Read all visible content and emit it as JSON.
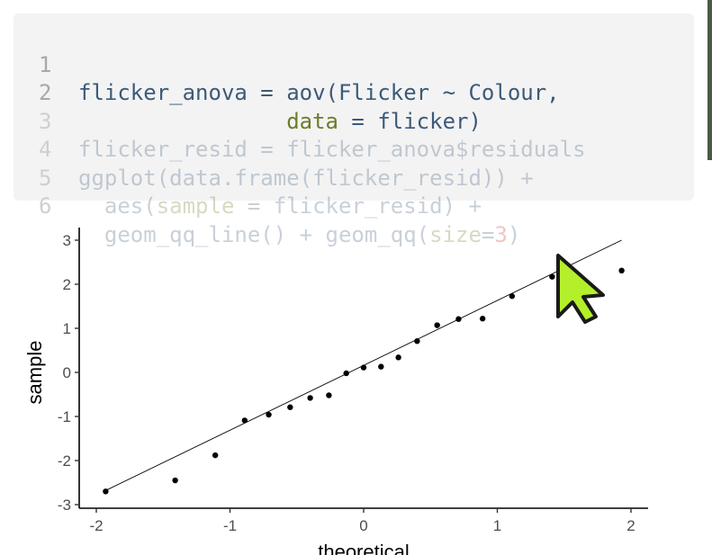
{
  "code": {
    "lines": [
      {
        "num": "1",
        "html": "<span class=\"c-fn\">flicker_anova = aov(Flicker ~ Colour,</span>"
      },
      {
        "num": "2",
        "html": "                <span class=\"c-arg\">data</span><span class=\"c-fn\"> = flicker)</span>"
      },
      {
        "num": "3",
        "html": "<span class=\"c-fn\">flicker_resid = flicker_anova$residuals</span>"
      },
      {
        "num": "4",
        "html": "<span class=\"c-fn\">ggplot(data.frame(flicker_resid)) +</span>"
      },
      {
        "num": "5",
        "html": "<span class=\"c-fn\">  aes(</span><span class=\"c-arg\">sample</span><span class=\"c-fn\"> = flicker_resid) +</span>"
      },
      {
        "num": "6",
        "html": "<span class=\"c-fn\">  geom_qq_line() + geom_qq(</span><span class=\"c-arg\">size</span><span class=\"c-fn\">=</span><span class=\"c-num\">3</span><span class=\"c-fn\">)</span>"
      }
    ],
    "faded_from": 3
  },
  "chart_data": {
    "type": "scatter",
    "title": "",
    "xlabel": "theoretical",
    "ylabel": "sample",
    "xlim": [
      -2.0,
      2.1
    ],
    "ylim": [
      -3,
      3.2
    ],
    "xticks": [
      -2,
      -1,
      0,
      1,
      2
    ],
    "yticks": [
      -3,
      -2,
      -1,
      0,
      1,
      2,
      3
    ],
    "grid": false,
    "points": [
      {
        "x": -1.93,
        "y": -2.7
      },
      {
        "x": -1.41,
        "y": -2.45
      },
      {
        "x": -1.11,
        "y": -1.88
      },
      {
        "x": -0.89,
        "y": -1.09
      },
      {
        "x": -0.71,
        "y": -0.96
      },
      {
        "x": -0.55,
        "y": -0.79
      },
      {
        "x": -0.4,
        "y": -0.58
      },
      {
        "x": -0.26,
        "y": -0.52
      },
      {
        "x": -0.13,
        "y": -0.02
      },
      {
        "x": 0.0,
        "y": 0.11
      },
      {
        "x": 0.13,
        "y": 0.13
      },
      {
        "x": 0.26,
        "y": 0.34
      },
      {
        "x": 0.4,
        "y": 0.71
      },
      {
        "x": 0.55,
        "y": 1.07
      },
      {
        "x": 0.71,
        "y": 1.21
      },
      {
        "x": 0.89,
        "y": 1.22
      },
      {
        "x": 1.11,
        "y": 1.73
      },
      {
        "x": 1.41,
        "y": 2.17
      },
      {
        "x": 1.93,
        "y": 2.31
      }
    ],
    "qq_line": {
      "x": [
        -1.93,
        1.93
      ],
      "y": [
        -2.68,
        3.0
      ]
    }
  },
  "cursor_color": "#b4ef2b"
}
